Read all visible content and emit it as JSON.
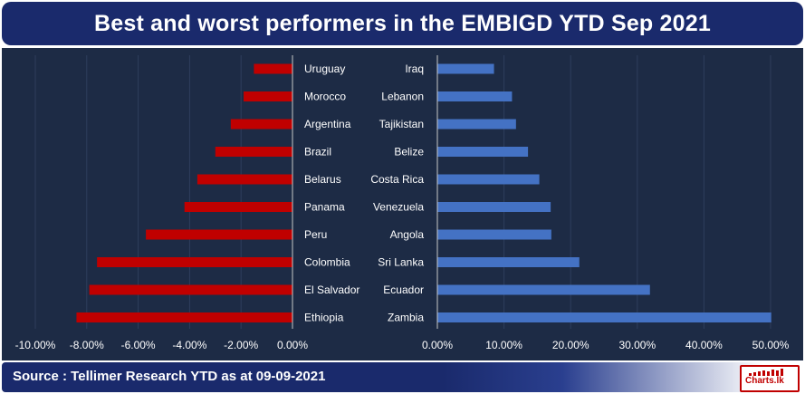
{
  "title": "Best and worst performers in the EMBIGD YTD Sep 2021",
  "source": "Source : Tellimer Research YTD as at 09-09-2021",
  "logo_text": "Charts.lk",
  "colors": {
    "title_bg": "#1a2a6c",
    "panel_bg": "#1d2b45",
    "worst_bar": "#c00000",
    "best_bar": "#4472c4",
    "text": "#ffffff"
  },
  "chart_data": [
    {
      "type": "bar",
      "orientation": "horizontal",
      "name": "worst",
      "categories": [
        "Uruguay",
        "Morocco",
        "Argentina",
        "Brazil",
        "Belarus",
        "Panama",
        "Peru",
        "Colombia",
        "El Salvador",
        "Ethiopia"
      ],
      "values": [
        -1.5,
        -1.9,
        -2.4,
        -3.0,
        -3.7,
        -4.2,
        -5.7,
        -7.6,
        -7.9,
        -8.4
      ],
      "xlim": [
        -10,
        0
      ],
      "xticks": [
        "-10.00%",
        "-8.00%",
        "-6.00%",
        "-4.00%",
        "-2.00%",
        "0.00%"
      ],
      "xtick_values": [
        -10,
        -8,
        -6,
        -4,
        -2,
        0
      ],
      "unit": "%",
      "grid": true
    },
    {
      "type": "bar",
      "orientation": "horizontal",
      "name": "best",
      "categories": [
        "Iraq",
        "Lebanon",
        "Tajikistan",
        "Belize",
        "Costa Rica",
        "Venezuela",
        "Angola",
        "Sri Lanka",
        "Ecuador",
        "Zambia"
      ],
      "values": [
        8.5,
        11.2,
        11.8,
        13.6,
        15.3,
        17.0,
        17.1,
        21.3,
        31.9,
        50.1
      ],
      "xlim": [
        0,
        50
      ],
      "xticks": [
        "0.00%",
        "10.00%",
        "20.00%",
        "30.00%",
        "40.00%",
        "50.00%"
      ],
      "xtick_values": [
        0,
        10,
        20,
        30,
        40,
        50
      ],
      "unit": "%",
      "grid": true
    }
  ]
}
